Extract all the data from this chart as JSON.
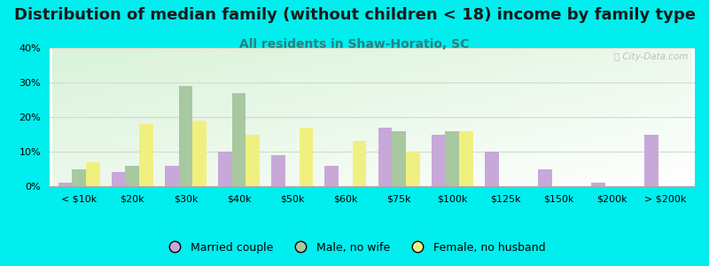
{
  "title": "Distribution of median family (without children < 18) income by family type",
  "subtitle": "All residents in Shaw-Horatio, SC",
  "categories": [
    "< $10k",
    "$20k",
    "$30k",
    "$40k",
    "$50k",
    "$60k",
    "$75k",
    "$100k",
    "$125k",
    "$150k",
    "$200k",
    "> $200k"
  ],
  "married_couple": [
    1,
    4,
    6,
    10,
    9,
    6,
    17,
    15,
    10,
    5,
    1,
    15
  ],
  "male_no_wife": [
    5,
    6,
    29,
    27,
    0,
    0,
    16,
    16,
    0,
    0,
    0,
    0
  ],
  "female_no_husband": [
    7,
    18,
    19,
    15,
    17,
    13,
    10,
    16,
    0,
    0,
    0,
    0
  ],
  "married_color": "#c8a8d8",
  "male_color": "#a8c8a0",
  "female_color": "#f0f080",
  "bg_color": "#00eeee",
  "title_color": "#1a1a1a",
  "subtitle_color": "#2a8080",
  "watermark_color": "#aaaaaa",
  "ylim": [
    0,
    40
  ],
  "yticks": [
    0,
    10,
    20,
    30,
    40
  ],
  "bar_width": 0.26,
  "title_fontsize": 13,
  "subtitle_fontsize": 10,
  "tick_fontsize": 8,
  "legend_fontsize": 9,
  "watermark": "City-Data.com"
}
